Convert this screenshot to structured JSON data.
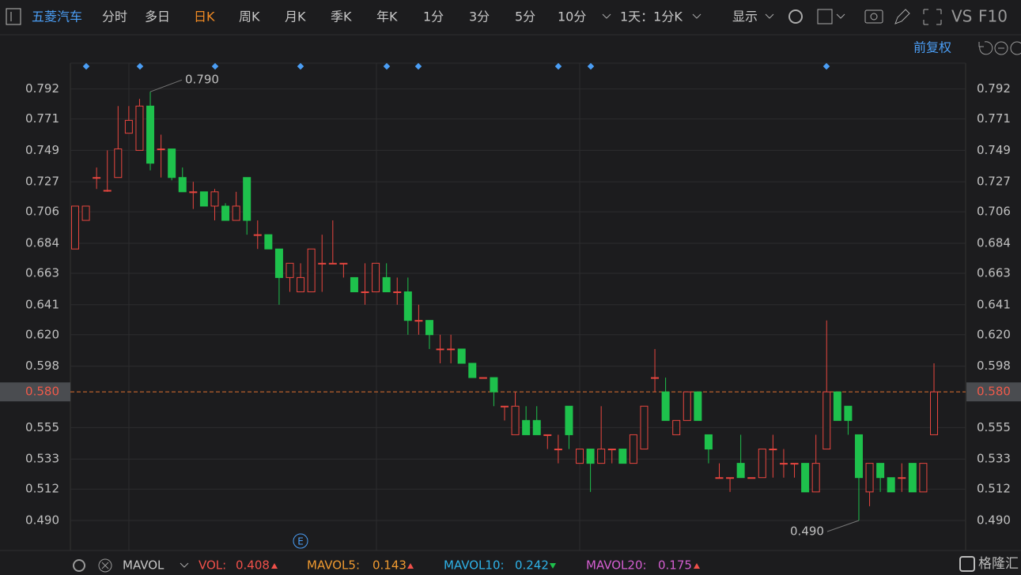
{
  "toolbar": {
    "stock": "五菱汽车",
    "tabs": [
      "分时",
      "多日",
      "日K",
      "周K",
      "月K",
      "季K",
      "年K",
      "1分",
      "3分",
      "5分",
      "10分"
    ],
    "period": "1天：1分K",
    "display": "显示",
    "vs": "VS",
    "f10": "F10",
    "adjust": "前复权"
  },
  "chart_data": {
    "type": "candlestick",
    "open": [
      0.68,
      0.7,
      0.73,
      0.721,
      0.73,
      0.761,
      0.749,
      0.78,
      0.75,
      0.75,
      0.73,
      0.72,
      0.72,
      0.71,
      0.71,
      0.7,
      0.73,
      0.69,
      0.69,
      0.68,
      0.66,
      0.65,
      0.65,
      0.67,
      0.67,
      0.67,
      0.66,
      0.65,
      0.65,
      0.66,
      0.65,
      0.65,
      0.63,
      0.63,
      0.61,
      0.61,
      0.61,
      0.6,
      0.59,
      0.59,
      0.57,
      0.55,
      0.56,
      0.56,
      0.55,
      0.54,
      0.57,
      0.53,
      0.54,
      0.53,
      0.54,
      0.54,
      0.53,
      0.54,
      0.59,
      0.58,
      0.55,
      0.56,
      0.58,
      0.55,
      0.52,
      0.52,
      0.53,
      0.52,
      0.52,
      0.54,
      0.53,
      0.53,
      0.53,
      0.51,
      0.54,
      0.58,
      0.57,
      0.55,
      0.51,
      0.53,
      0.52,
      0.52,
      0.53,
      0.51,
      0.55
    ],
    "high": [
      0.71,
      0.71,
      0.737,
      0.749,
      0.78,
      0.78,
      0.785,
      0.79,
      0.76,
      0.75,
      0.737,
      0.727,
      0.72,
      0.722,
      0.712,
      0.72,
      0.73,
      0.7,
      0.69,
      0.68,
      0.67,
      0.67,
      0.68,
      0.69,
      0.7,
      0.67,
      0.66,
      0.67,
      0.67,
      0.67,
      0.66,
      0.66,
      0.641,
      0.63,
      0.62,
      0.62,
      0.61,
      0.6,
      0.59,
      0.59,
      0.57,
      0.58,
      0.57,
      0.57,
      0.55,
      0.55,
      0.57,
      0.54,
      0.54,
      0.57,
      0.54,
      0.54,
      0.55,
      0.57,
      0.61,
      0.59,
      0.56,
      0.58,
      0.58,
      0.55,
      0.53,
      0.52,
      0.55,
      0.52,
      0.54,
      0.55,
      0.54,
      0.53,
      0.53,
      0.55,
      0.63,
      0.58,
      0.57,
      0.55,
      0.53,
      0.53,
      0.52,
      0.53,
      0.53,
      0.53,
      0.6
    ],
    "low": [
      0.68,
      0.7,
      0.722,
      0.72,
      0.73,
      0.761,
      0.749,
      0.735,
      0.73,
      0.728,
      0.72,
      0.708,
      0.71,
      0.7,
      0.7,
      0.7,
      0.69,
      0.68,
      0.68,
      0.641,
      0.65,
      0.65,
      0.65,
      0.65,
      0.67,
      0.66,
      0.65,
      0.641,
      0.65,
      0.65,
      0.641,
      0.62,
      0.62,
      0.61,
      0.6,
      0.6,
      0.6,
      0.59,
      0.59,
      0.57,
      0.56,
      0.55,
      0.55,
      0.55,
      0.54,
      0.53,
      0.54,
      0.53,
      0.51,
      0.53,
      0.53,
      0.53,
      0.53,
      0.54,
      0.58,
      0.56,
      0.55,
      0.56,
      0.56,
      0.53,
      0.52,
      0.51,
      0.52,
      0.52,
      0.52,
      0.52,
      0.52,
      0.52,
      0.51,
      0.51,
      0.54,
      0.56,
      0.55,
      0.49,
      0.5,
      0.51,
      0.51,
      0.51,
      0.51,
      0.51,
      0.55
    ],
    "close": [
      0.71,
      0.71,
      0.73,
      0.721,
      0.75,
      0.77,
      0.78,
      0.74,
      0.75,
      0.73,
      0.72,
      0.72,
      0.71,
      0.72,
      0.7,
      0.71,
      0.7,
      0.69,
      0.68,
      0.66,
      0.67,
      0.66,
      0.68,
      0.67,
      0.67,
      0.67,
      0.65,
      0.65,
      0.67,
      0.65,
      0.65,
      0.63,
      0.63,
      0.62,
      0.61,
      0.61,
      0.6,
      0.59,
      0.59,
      0.58,
      0.57,
      0.57,
      0.55,
      0.55,
      0.55,
      0.54,
      0.55,
      0.54,
      0.53,
      0.54,
      0.54,
      0.53,
      0.55,
      0.57,
      0.59,
      0.56,
      0.56,
      0.58,
      0.56,
      0.54,
      0.52,
      0.52,
      0.52,
      0.52,
      0.54,
      0.54,
      0.53,
      0.53,
      0.51,
      0.53,
      0.58,
      0.56,
      0.56,
      0.52,
      0.53,
      0.52,
      0.51,
      0.52,
      0.51,
      0.53,
      0.58
    ],
    "up_color": "#e8463f",
    "down_color": "#1ec14c",
    "ylim": [
      0.469,
      0.81
    ],
    "yticks": [
      0.792,
      0.771,
      0.749,
      0.727,
      0.706,
      0.684,
      0.663,
      0.641,
      {
        "value": 0.62,
        "label": "0.620"
      },
      0.598,
      0.555,
      0.533,
      0.512,
      {
        "value": 0.49,
        "label": "0.490"
      }
    ],
    "last_price": {
      "value": 0.58,
      "label": "0.580"
    },
    "annotations": [
      {
        "text": "0.790",
        "value": 0.79
      },
      {
        "text": "0.490",
        "value": 0.49
      }
    ]
  },
  "indicator_bar": {
    "name": "MAVOL",
    "items": [
      {
        "label": "VOL:",
        "value": "0.408",
        "color": "#f0504a"
      },
      {
        "label": "MAVOL5:",
        "value": "0.143",
        "color": "#f09a30"
      },
      {
        "label": "MAVOL10:",
        "value": "0.242",
        "color": "#2eb2e8"
      },
      {
        "label": "MAVOL20:",
        "value": "0.175",
        "color": "#d45ed0"
      }
    ]
  },
  "watermark": "格隆汇"
}
